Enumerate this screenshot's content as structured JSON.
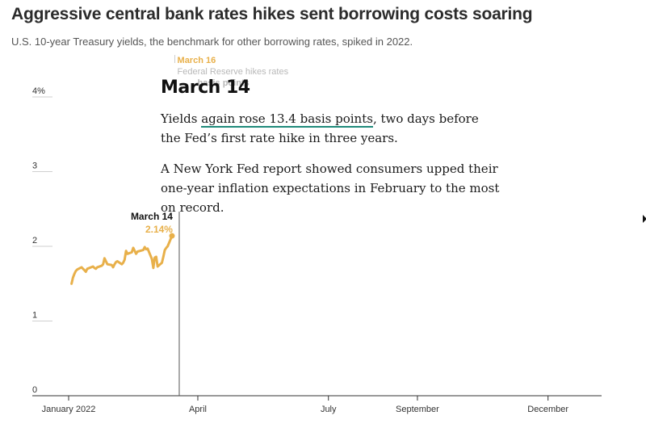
{
  "header": {
    "title": "Aggressive central bank rates hikes sent borrowing costs soaring",
    "subtitle": "U.S. 10-year Treasury yields, the benchmark for other borrowing rates, spiked in 2022."
  },
  "panel": {
    "heading": "March 14",
    "p1_pre": "Yields ",
    "p1_link": "again rose 13.4 basis points",
    "p1_post": ", two days before the Fed’s first rate hike in three years.",
    "p2": "A New York Fed report showed consumers upped their one-year inflation expectations in February to the most on record."
  },
  "chart_data": {
    "type": "line",
    "title": "Aggressive central bank rates hikes sent borrowing costs soaring",
    "subtitle": "U.S. 10-year Treasury yields, the benchmark for other borrowing rates, spiked in 2022.",
    "xlabel": "",
    "ylabel": "",
    "ylim": [
      0,
      4
    ],
    "xlim": [
      "2022-01-01",
      "2022-12-31"
    ],
    "yticks": [
      "4%",
      "3",
      "2",
      "1",
      "0"
    ],
    "ytick_values": [
      4,
      3,
      2,
      1,
      0
    ],
    "xticks": [
      "January 2022",
      "April",
      "July",
      "September",
      "December"
    ],
    "xtick_dates": [
      "2022-01-01",
      "2022-04-01",
      "2022-07-01",
      "2022-09-01",
      "2022-12-01"
    ],
    "grid": false,
    "color": "#e8b04a",
    "series": [
      {
        "x": [
          "2022-01-03",
          "2022-01-04",
          "2022-01-05",
          "2022-01-06",
          "2022-01-07",
          "2022-01-10",
          "2022-01-11",
          "2022-01-12",
          "2022-01-13",
          "2022-01-14",
          "2022-01-18",
          "2022-01-19",
          "2022-01-20",
          "2022-01-21",
          "2022-01-24",
          "2022-01-25",
          "2022-01-26",
          "2022-01-27",
          "2022-01-28",
          "2022-01-31",
          "2022-02-01",
          "2022-02-02",
          "2022-02-03",
          "2022-02-04",
          "2022-02-07",
          "2022-02-08",
          "2022-02-09",
          "2022-02-10",
          "2022-02-11",
          "2022-02-14",
          "2022-02-15",
          "2022-02-16",
          "2022-02-17",
          "2022-02-18",
          "2022-02-22",
          "2022-02-23",
          "2022-02-24",
          "2022-02-25",
          "2022-02-28",
          "2022-03-01",
          "2022-03-02",
          "2022-03-03",
          "2022-03-04",
          "2022-03-07",
          "2022-03-08",
          "2022-03-09",
          "2022-03-10",
          "2022-03-11",
          "2022-03-14"
        ],
        "values": [
          1.5,
          1.58,
          1.63,
          1.67,
          1.69,
          1.72,
          1.7,
          1.68,
          1.66,
          1.7,
          1.73,
          1.71,
          1.7,
          1.72,
          1.74,
          1.76,
          1.84,
          1.8,
          1.76,
          1.75,
          1.72,
          1.76,
          1.79,
          1.8,
          1.76,
          1.78,
          1.82,
          1.94,
          1.9,
          1.92,
          1.98,
          1.94,
          1.9,
          1.93,
          1.95,
          1.99,
          1.96,
          1.97,
          1.83,
          1.71,
          1.85,
          1.86,
          1.73,
          1.78,
          1.86,
          1.95,
          1.98,
          2.0,
          2.14
        ]
      }
    ],
    "current_marker": {
      "date": "2022-03-14",
      "date_label": "March 14",
      "value": 2.14,
      "value_label": "2.14%"
    },
    "upcoming_marker": {
      "date": "2022-03-16",
      "date_label": "March 16",
      "text": "Federal Reserve hikes rates",
      "text2": "basis points"
    }
  }
}
